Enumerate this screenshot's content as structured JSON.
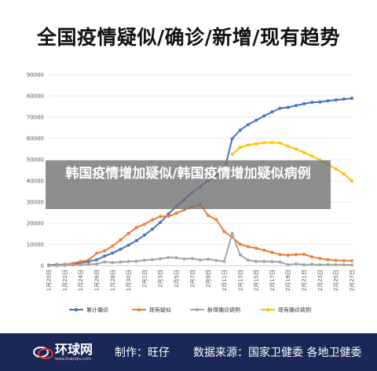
{
  "title": "全国疫情疑似/确诊/新增/现有趋势",
  "overlay_text": "韩国疫情增加疑似/韩国疫情增加疑似病例",
  "footer": {
    "logo_main": "环球网",
    "logo_sub": "www.huanqiu.com",
    "producer": "制作：旺仔",
    "source": "数据来源：国家卫健委 各地卫健委"
  },
  "colors": {
    "confirmed": "#4472c4",
    "suspected": "#ed7d31",
    "new_confirmed": "#a5a5a5",
    "current_confirmed": "#ffc000",
    "footer_bg": "#1b2756"
  },
  "chart_data": {
    "type": "line",
    "ylim": [
      0,
      90000
    ],
    "yticks": [
      0,
      10000,
      20000,
      30000,
      40000,
      50000,
      60000,
      70000,
      80000,
      90000
    ],
    "x": [
      "1月20日",
      "1月21日",
      "1月22日",
      "1月23日",
      "1月24日",
      "1月25日",
      "1月26日",
      "1月27日",
      "1月28日",
      "1月29日",
      "1月30日",
      "1月31日",
      "2月1日",
      "2月2日",
      "2月3日",
      "2月4日",
      "2月5日",
      "2月6日",
      "2月7日",
      "2月8日",
      "2月9日",
      "2月10日",
      "2月11日",
      "2月12日",
      "2月13日",
      "2月14日",
      "2月15日",
      "2月16日",
      "2月17日",
      "2月18日",
      "2月19日",
      "2月20日",
      "2月21日",
      "2月22日",
      "2月23日",
      "2月24日",
      "2月25日",
      "2月26日",
      "2月27日"
    ],
    "xtick_labels": [
      "1月20日",
      "1月22日",
      "1月24日",
      "1月26日",
      "1月28日",
      "1月30日",
      "2月1日",
      "2月3日",
      "2月5日",
      "2月7日",
      "2月9日",
      "2月11日",
      "2月13日",
      "2月15日",
      "2月17日",
      "2月19日",
      "2月21日",
      "2月23日",
      "2月25日",
      "2月27日"
    ],
    "series": [
      {
        "name": "累计确诊",
        "color": "#4472c4",
        "values": [
          291,
          440,
          571,
          830,
          1287,
          1975,
          2744,
          4515,
          5974,
          7711,
          9692,
          11791,
          14380,
          17205,
          20438,
          24324,
          28018,
          31161,
          34546,
          37198,
          40171,
          42638,
          44653,
          59804,
          63851,
          66492,
          68500,
          70548,
          72436,
          74185,
          74576,
          75465,
          76288,
          76936,
          77150,
          77658,
          78064,
          78497,
          78824
        ]
      },
      {
        "name": "现有疑似",
        "color": "#ed7d31",
        "values": [
          54,
          37,
          393,
          1072,
          1965,
          2684,
          5794,
          6973,
          9239,
          12167,
          15238,
          17988,
          19544,
          21558,
          23214,
          23260,
          24702,
          26359,
          27657,
          28942,
          23589,
          21675,
          16067,
          13435,
          10109,
          8969,
          8228,
          7264,
          6242,
          5248,
          4922,
          5206,
          5365,
          4148,
          3434,
          2824,
          2491,
          2358,
          2308
        ]
      },
      {
        "name": "新增确诊病例",
        "color": "#a5a5a5",
        "values": [
          77,
          149,
          131,
          259,
          444,
          688,
          769,
          1771,
          1459,
          1737,
          1982,
          2102,
          2590,
          2829,
          3235,
          3887,
          3694,
          3143,
          3399,
          2656,
          3062,
          2478,
          2015,
          15152,
          5090,
          2641,
          2009,
          2048,
          1886,
          1749,
          394,
          889,
          397,
          648,
          409,
          508,
          406,
          433,
          327
        ]
      },
      {
        "name": "现有确诊病例",
        "color": "#ffc000",
        "values": [
          null,
          null,
          null,
          null,
          null,
          null,
          null,
          null,
          null,
          null,
          null,
          null,
          null,
          null,
          null,
          null,
          null,
          null,
          null,
          null,
          null,
          null,
          null,
          52526,
          55748,
          56873,
          57416,
          57934,
          58016,
          57805,
          56303,
          54965,
          53284,
          51606,
          49824,
          47672,
          45604,
          43258,
          39919
        ]
      }
    ]
  }
}
